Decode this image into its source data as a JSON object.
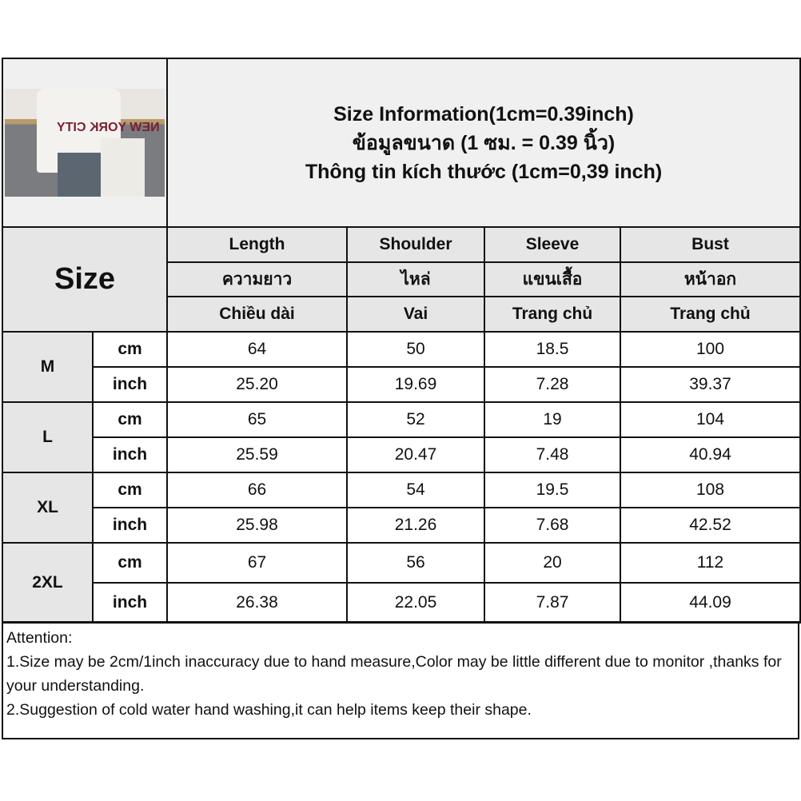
{
  "title_lines": [
    "Size Information(1cm=0.39inch)",
    "ข้อมูลขนาด (1 ซม. = 0.39 นิ้ว)",
    "Thông tin kích thước (1cm=0,39 inch)"
  ],
  "size_label": "Size",
  "photo_shirt_text": "NEW YORK CITY",
  "columns": [
    {
      "en": "Length",
      "th": "ความยาว",
      "vi": "Chiều dài"
    },
    {
      "en": "Shoulder",
      "th": "ไหล่",
      "vi": "Vai"
    },
    {
      "en": "Sleeve",
      "th": "แขนเสื้อ",
      "vi": "Trang chủ"
    },
    {
      "en": "Bust",
      "th": "หน้าอก",
      "vi": "Trang chủ"
    }
  ],
  "units": {
    "cm": "cm",
    "inch": "inch"
  },
  "rows": [
    {
      "size": "M",
      "cm": [
        "64",
        "50",
        "18.5",
        "100"
      ],
      "inch": [
        "25.20",
        "19.69",
        "7.28",
        "39.37"
      ]
    },
    {
      "size": "L",
      "cm": [
        "65",
        "52",
        "19",
        "104"
      ],
      "inch": [
        "25.59",
        "20.47",
        "7.48",
        "40.94"
      ]
    },
    {
      "size": "XL",
      "cm": [
        "66",
        "54",
        "19.5",
        "108"
      ],
      "inch": [
        "25.98",
        "21.26",
        "7.68",
        "42.52"
      ]
    },
    {
      "size": "2XL",
      "cm": [
        "67",
        "56",
        "20",
        "112"
      ],
      "inch": [
        "26.38",
        "22.05",
        "7.87",
        "44.09"
      ]
    }
  ],
  "notes": [
    "Attention:",
    "1.Size may be 2cm/1inch inaccuracy due to hand measure,Color may be little different due to monitor ,thanks for your understanding.",
    "2.Suggestion of cold water hand washing,it can help items keep their shape."
  ]
}
